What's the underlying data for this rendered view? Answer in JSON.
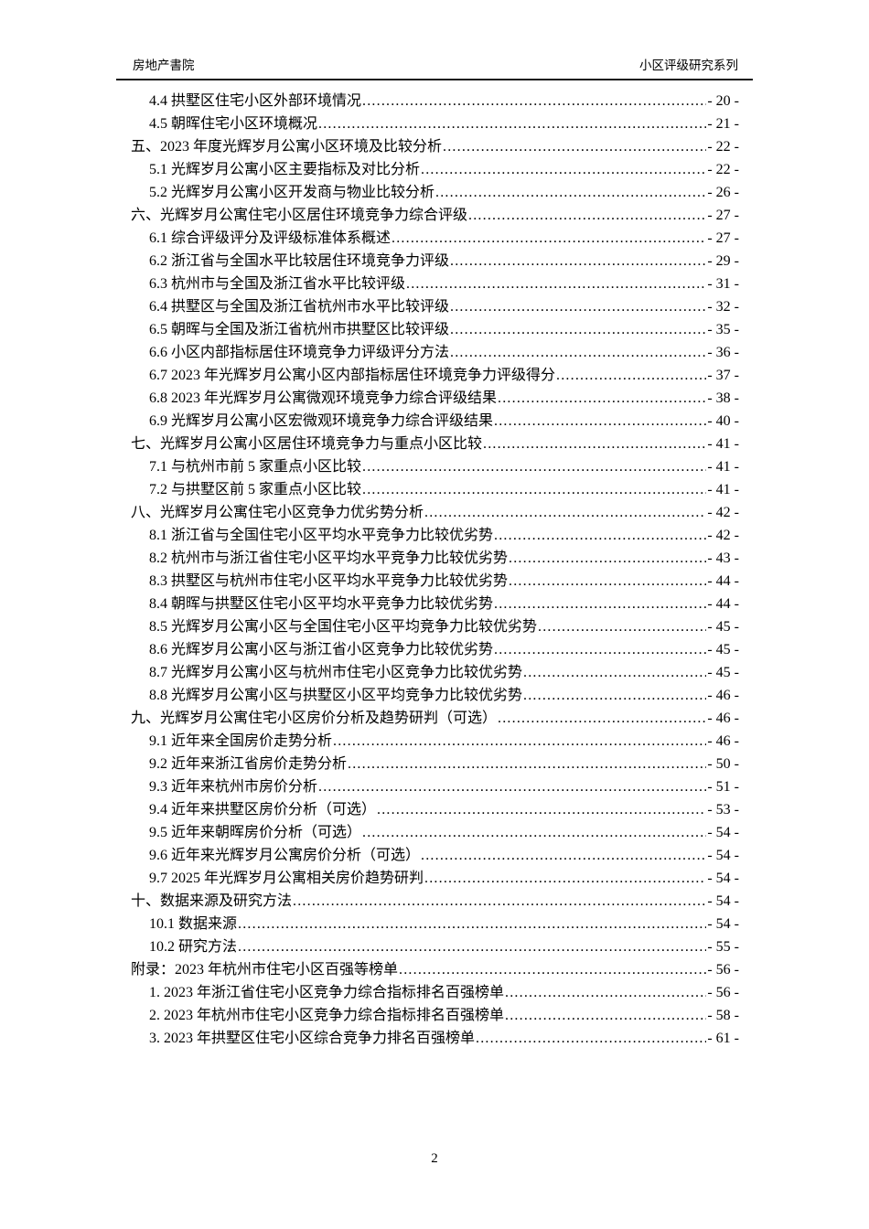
{
  "header": {
    "left": "房地产書院",
    "right": "小区评级研究系列"
  },
  "toc": {
    "entries": [
      {
        "level": 2,
        "label": "4.4 拱墅区住宅小区外部环境情况",
        "page": "- 20 -"
      },
      {
        "level": 2,
        "label": "4.5 朝晖住宅小区环境概况",
        "page": "- 21 -"
      },
      {
        "level": 1,
        "label": "五、2023 年度光辉岁月公寓小区环境及比较分析",
        "page": "- 22 -"
      },
      {
        "level": 2,
        "label": "5.1 光辉岁月公寓小区主要指标及对比分析",
        "page": "- 22 -"
      },
      {
        "level": 2,
        "label": "5.2 光辉岁月公寓小区开发商与物业比较分析",
        "page": "- 26 -"
      },
      {
        "level": 1,
        "label": "六、光辉岁月公寓住宅小区居住环境竞争力综合评级",
        "page": "- 27 -"
      },
      {
        "level": 2,
        "label": "6.1 综合评级评分及评级标准体系概述",
        "page": "- 27 -"
      },
      {
        "level": 2,
        "label": "6.2 浙江省与全国水平比较居住环境竞争力评级",
        "page": "- 29 -"
      },
      {
        "level": 2,
        "label": "6.3 杭州市与全国及浙江省水平比较评级",
        "page": "- 31 -"
      },
      {
        "level": 2,
        "label": "6.4 拱墅区与全国及浙江省杭州市水平比较评级",
        "page": "- 32 -"
      },
      {
        "level": 2,
        "label": "6.5 朝晖与全国及浙江省杭州市拱墅区比较评级",
        "page": "- 35 -"
      },
      {
        "level": 2,
        "label": "6.6 小区内部指标居住环境竞争力评级评分方法",
        "page": "- 36 -"
      },
      {
        "level": 2,
        "label": "6.7 2023 年光辉岁月公寓小区内部指标居住环境竞争力评级得分",
        "page": "- 37 -"
      },
      {
        "level": 2,
        "label": "6.8 2023 年光辉岁月公寓微观环境竞争力综合评级结果",
        "page": "- 38 -"
      },
      {
        "level": 2,
        "label": "6.9 光辉岁月公寓小区宏微观环境竞争力综合评级结果",
        "page": "- 40 -"
      },
      {
        "level": 1,
        "label": "七、光辉岁月公寓小区居住环境竞争力与重点小区比较",
        "page": "- 41 -"
      },
      {
        "level": 2,
        "label": "7.1 与杭州市前 5 家重点小区比较",
        "page": "- 41 -"
      },
      {
        "level": 2,
        "label": "7.2 与拱墅区前 5 家重点小区比较",
        "page": "- 41 -"
      },
      {
        "level": 1,
        "label": "八、光辉岁月公寓住宅小区竞争力优劣势分析",
        "page": "- 42 -"
      },
      {
        "level": 2,
        "label": "8.1 浙江省与全国住宅小区平均水平竞争力比较优劣势",
        "page": "- 42 -"
      },
      {
        "level": 2,
        "label": "8.2 杭州市与浙江省住宅小区平均水平竞争力比较优劣势",
        "page": "- 43 -"
      },
      {
        "level": 2,
        "label": "8.3 拱墅区与杭州市住宅小区平均水平竞争力比较优劣势",
        "page": "- 44 -"
      },
      {
        "level": 2,
        "label": "8.4 朝晖与拱墅区住宅小区平均水平竞争力比较优劣势",
        "page": "- 44 -"
      },
      {
        "level": 2,
        "label": "8.5 光辉岁月公寓小区与全国住宅小区平均竞争力比较优劣势",
        "page": "- 45 -"
      },
      {
        "level": 2,
        "label": "8.6 光辉岁月公寓小区与浙江省小区竞争力比较优劣势",
        "page": "- 45 -"
      },
      {
        "level": 2,
        "label": "8.7 光辉岁月公寓小区与杭州市住宅小区竞争力比较优劣势",
        "page": "- 45 -"
      },
      {
        "level": 2,
        "label": "8.8 光辉岁月公寓小区与拱墅区小区平均竞争力比较优劣势",
        "page": "- 46 -"
      },
      {
        "level": 1,
        "label": "九、光辉岁月公寓住宅小区房价分析及趋势研判（可选） ",
        "page": "- 46 -"
      },
      {
        "level": 2,
        "label": "9.1 近年来全国房价走势分析",
        "page": "- 46 -"
      },
      {
        "level": 2,
        "label": "9.2 近年来浙江省房价走势分析",
        "page": "- 50 -"
      },
      {
        "level": 2,
        "label": "9.3 近年来杭州市房价分析",
        "page": "- 51 -"
      },
      {
        "level": 2,
        "label": "9.4 近年来拱墅区房价分析（可选） ",
        "page": "- 53 -"
      },
      {
        "level": 2,
        "label": "9.5 近年来朝晖房价分析（可选） ",
        "page": "- 54 -"
      },
      {
        "level": 2,
        "label": "9.6 近年来光辉岁月公寓房价分析（可选） ",
        "page": "- 54 -"
      },
      {
        "level": 2,
        "label": "9.7 2025 年光辉岁月公寓相关房价趋势研判",
        "page": "- 54 -"
      },
      {
        "level": 1,
        "label": "十、数据来源及研究方法",
        "page": "- 54 -"
      },
      {
        "level": 2,
        "label": "10.1 数据来源",
        "page": "- 54 -"
      },
      {
        "level": 2,
        "label": "10.2 研究方法",
        "page": "- 55 -"
      },
      {
        "level": 1,
        "label": "附录：2023 年杭州市住宅小区百强等榜单",
        "page": "- 56 -"
      },
      {
        "level": 2,
        "label": "1. 2023 年浙江省住宅小区竞争力综合指标排名百强榜单",
        "page": "- 56 -"
      },
      {
        "level": 2,
        "label": "2. 2023 年杭州市住宅小区竞争力综合指标排名百强榜单",
        "page": "- 58 -"
      },
      {
        "level": 2,
        "label": "3. 2023 年拱墅区住宅小区综合竞争力排名百强榜单",
        "page": "- 61 -"
      }
    ]
  },
  "footer": {
    "page_number": "2"
  }
}
